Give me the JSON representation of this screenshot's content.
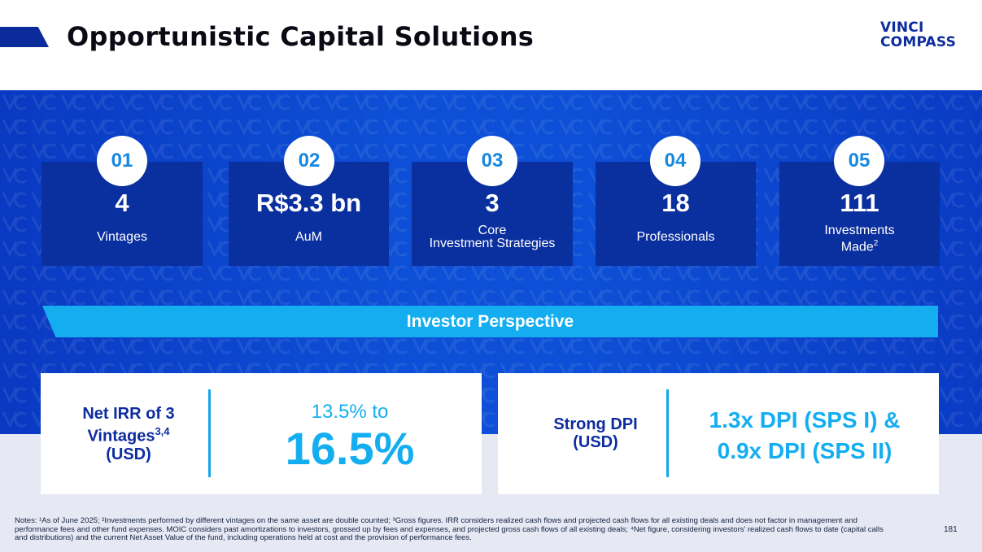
{
  "header": {
    "title": "Opportunistic Capital Solutions",
    "logo_line1": "VINCI",
    "logo_line2": "COMPASS"
  },
  "colors": {
    "brand_navy": "#0a2f9e",
    "brand_blue": "#0d4fd6",
    "accent_cyan": "#14aef0"
  },
  "stats": [
    {
      "number": "01",
      "value": "4",
      "label": "Vintages"
    },
    {
      "number": "02",
      "value": "R$3.3 bn",
      "label": "AuM"
    },
    {
      "number": "03",
      "value": "3",
      "label_line1": "Core",
      "label_line2": "Investment Strategies"
    },
    {
      "number": "04",
      "value": "18",
      "label": "Professionals"
    },
    {
      "number": "05",
      "value": "111",
      "label_line1": "Investments",
      "label_line2": "Made",
      "label_sup": "2"
    }
  ],
  "banner": {
    "text": "Investor Perspective"
  },
  "irr": {
    "label_line1": "Net IRR of 3",
    "label_line2": "Vintages",
    "label_sup": "3,4",
    "label_line3": "(USD)",
    "range_from": "13.5% to",
    "range_to": "16.5%"
  },
  "dpi": {
    "label_line1": "Strong DPI",
    "label_line2": "(USD)",
    "value_line1": "1.3x DPI (SPS I) &",
    "value_line2": "0.9x DPI (SPS II)"
  },
  "footer": {
    "notes": "Notes: ¹As of June 2025; ²Investments performed by different vintages on the same asset are double counted; ³Gross figures. IRR considers realized cash flows and projected cash flows for all existing deals and does not factor in management and performance fees and other fund expenses. MOIC considers past amortizations to investors, grossed up by fees and expenses, and projected gross cash flows of all existing deals; ⁴Net figure, considering investors’ realized cash flows to date (capital calls and distributions) and the current Net Asset Value of the fund, including operations held at cost and the provision of performance fees.",
    "page_number": "181"
  }
}
